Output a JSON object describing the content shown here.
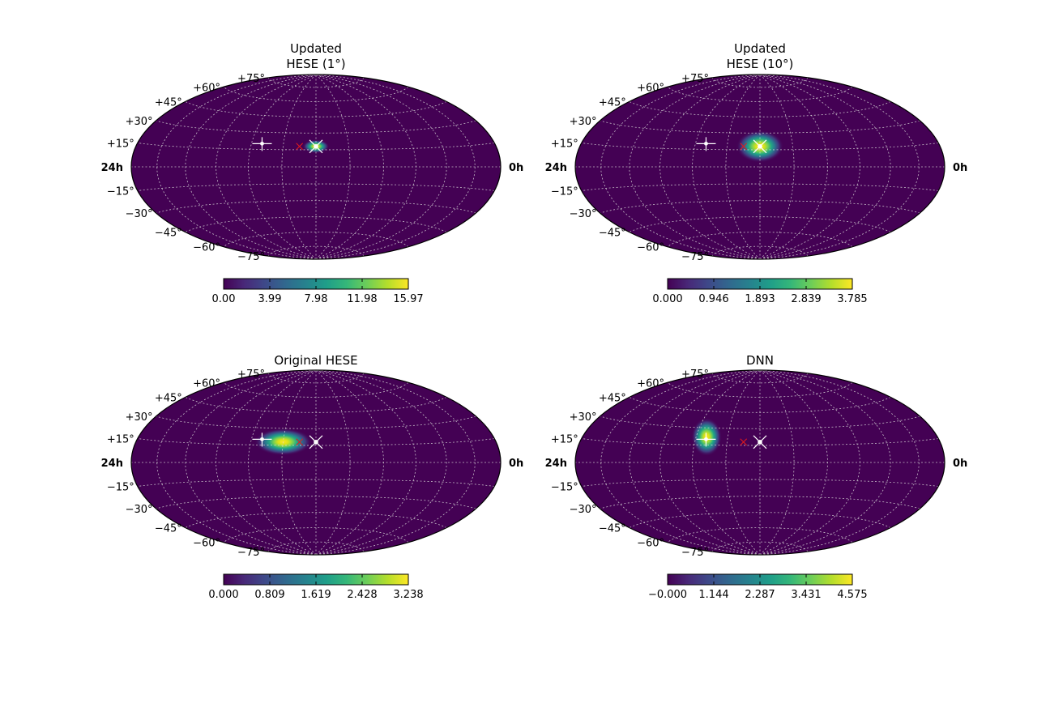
{
  "figure": {
    "description_free": true
  },
  "chart_data": [
    {
      "type": "heatmap",
      "projection": "hammer-aitoff",
      "title_lines": [
        "Updated",
        "HESE (1°)"
      ],
      "ra_labels": {
        "left": "24h",
        "right": "0h"
      },
      "dec_tick_labels": [
        "+75°",
        "+60°",
        "+45°",
        "+30°",
        "+15°",
        "−15°",
        "−30°",
        "−45°",
        "−60°",
        "−75°"
      ],
      "colorbar": {
        "ticks": [
          "0.00",
          "3.99",
          "7.98",
          "11.98",
          "15.97"
        ],
        "min": 0.0,
        "max": 15.97,
        "colormap": "viridis"
      },
      "hotspot": {
        "lon_deg": 0,
        "lat_deg": 18,
        "sigma_lon_deg": 5,
        "sigma_lat_deg": 2.5
      },
      "markers": [
        {
          "kind": "white-plus",
          "lon_deg": 50,
          "lat_deg": 20
        },
        {
          "kind": "red-x",
          "lon_deg": 15,
          "lat_deg": 18
        },
        {
          "kind": "white-x-dot",
          "lon_deg": 0,
          "lat_deg": 18
        }
      ],
      "grid": true
    },
    {
      "type": "heatmap",
      "projection": "hammer-aitoff",
      "title_lines": [
        "Updated",
        "HESE (10°)"
      ],
      "ra_labels": {
        "left": "24h",
        "right": "0h"
      },
      "dec_tick_labels": [
        "+75°",
        "+60°",
        "+45°",
        "+30°",
        "+15°",
        "−15°",
        "−30°",
        "−45°",
        "−60°",
        "−75°"
      ],
      "colorbar": {
        "ticks": [
          "0.000",
          "0.946",
          "1.893",
          "2.839",
          "3.785"
        ],
        "min": 0.0,
        "max": 3.785,
        "colormap": "viridis"
      },
      "hotspot": {
        "lon_deg": 0,
        "lat_deg": 18,
        "sigma_lon_deg": 9,
        "sigma_lat_deg": 6
      },
      "markers": [
        {
          "kind": "white-plus",
          "lon_deg": 50,
          "lat_deg": 20
        },
        {
          "kind": "red-x",
          "lon_deg": 15,
          "lat_deg": 18
        },
        {
          "kind": "white-x-dot",
          "lon_deg": 0,
          "lat_deg": 18
        }
      ],
      "grid": true
    },
    {
      "type": "heatmap",
      "projection": "hammer-aitoff",
      "title_lines": [
        "Original HESE"
      ],
      "ra_labels": {
        "left": "24h",
        "right": "0h"
      },
      "dec_tick_labels": [
        "+75°",
        "+60°",
        "+45°",
        "+30°",
        "+15°",
        "−15°",
        "−30°",
        "−45°",
        "−60°",
        "−75°"
      ],
      "colorbar": {
        "ticks": [
          "0.000",
          "0.809",
          "1.619",
          "2.428",
          "3.238"
        ],
        "min": 0.0,
        "max": 3.238,
        "colormap": "viridis"
      },
      "hotspot": {
        "lon_deg": 30,
        "lat_deg": 18,
        "sigma_lon_deg": 11,
        "sigma_lat_deg": 5
      },
      "markers": [
        {
          "kind": "white-plus",
          "lon_deg": 50,
          "lat_deg": 20
        },
        {
          "kind": "red-x",
          "lon_deg": 15,
          "lat_deg": 18
        },
        {
          "kind": "white-x-dot",
          "lon_deg": 0,
          "lat_deg": 18
        }
      ],
      "grid": true
    },
    {
      "type": "heatmap",
      "projection": "hammer-aitoff",
      "title_lines": [
        "DNN"
      ],
      "ra_labels": {
        "left": "24h",
        "right": "0h"
      },
      "dec_tick_labels": [
        "+75°",
        "+60°",
        "+45°",
        "+30°",
        "+15°",
        "−15°",
        "−30°",
        "−45°",
        "−60°",
        "−75°"
      ],
      "colorbar": {
        "ticks": [
          "−0.000",
          "1.144",
          "2.287",
          "3.431",
          "4.575"
        ],
        "min": 0.0,
        "max": 4.575,
        "colormap": "viridis"
      },
      "hotspot": {
        "lon_deg": 50,
        "lat_deg": 22,
        "sigma_lon_deg": 6,
        "sigma_lat_deg": 7
      },
      "markers": [
        {
          "kind": "white-plus",
          "lon_deg": 50,
          "lat_deg": 20
        },
        {
          "kind": "red-x",
          "lon_deg": 15,
          "lat_deg": 18
        },
        {
          "kind": "white-x-dot",
          "lon_deg": 0,
          "lat_deg": 18
        }
      ],
      "grid": true
    }
  ]
}
